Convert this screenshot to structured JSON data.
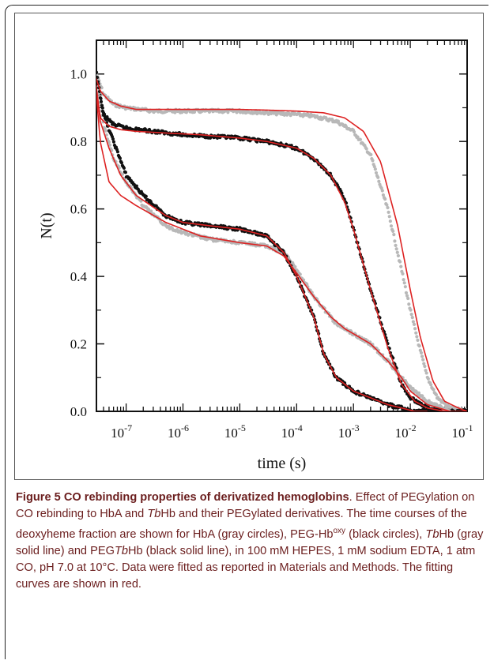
{
  "figure": {
    "caption_title": "Figure 5 CO rebinding properties of derivatized hemoglobins",
    "caption_parts": [
      {
        "text": ". Effect of PEGylation on CO rebinding to HbA and ",
        "italic": false,
        "sup": false
      },
      {
        "text": "Tb",
        "italic": true,
        "sup": false
      },
      {
        "text": "Hb and their PEGylated derivatives. The time courses of the deoxyheme fraction are shown for HbA (gray circles), PEG-Hb",
        "italic": false,
        "sup": false
      },
      {
        "text": "oxy",
        "italic": false,
        "sup": true
      },
      {
        "text": " (black circles), ",
        "italic": false,
        "sup": false
      },
      {
        "text": "Tb",
        "italic": true,
        "sup": false
      },
      {
        "text": "Hb (gray solid line) and PEG",
        "italic": false,
        "sup": false
      },
      {
        "text": "Tb",
        "italic": true,
        "sup": false
      },
      {
        "text": "Hb (black solid line), in 100 mM HEPES, 1 mM sodium EDTA, 1 atm CO, pH 7.0 at 10°C. Data were fitted as reported in Materials and Methods. The fitting curves are shown in red.",
        "italic": false,
        "sup": false
      }
    ]
  },
  "chart_data": {
    "type": "scatter",
    "xlabel": "time (s)",
    "ylabel": "N(t)",
    "x_scale": "log",
    "xlim": [
      3e-08,
      0.1
    ],
    "ylim": [
      0,
      1.1
    ],
    "x_ticks": [
      {
        "value": 1e-07,
        "mantissa": "10",
        "exp": "-7"
      },
      {
        "value": 1e-06,
        "mantissa": "10",
        "exp": "-6"
      },
      {
        "value": 1e-05,
        "mantissa": "10",
        "exp": "-5"
      },
      {
        "value": 0.0001,
        "mantissa": "10",
        "exp": "-4"
      },
      {
        "value": 0.001,
        "mantissa": "10",
        "exp": "-3"
      },
      {
        "value": 0.01,
        "mantissa": "10",
        "exp": "-2"
      },
      {
        "value": 0.1,
        "mantissa": "10",
        "exp": "-1"
      }
    ],
    "y_ticks": [
      "0.0",
      "0.2",
      "0.4",
      "0.6",
      "0.8",
      "1.0"
    ],
    "grid": false,
    "colors": {
      "gray_data": "#b8b8b8",
      "black_data": "#111111",
      "fit": "#dd2222"
    },
    "series": [
      {
        "style": "gray-dots",
        "x": [
          3e-08,
          4e-08,
          6e-08,
          1e-07,
          3e-07,
          1e-06,
          3e-06,
          1e-05,
          3e-05,
          0.0001,
          0.0002,
          0.0005,
          0.001,
          0.002,
          0.004,
          0.007,
          0.01,
          0.015,
          0.02,
          0.03,
          0.05,
          0.1
        ],
        "y": [
          1.0,
          0.94,
          0.91,
          0.9,
          0.89,
          0.89,
          0.89,
          0.89,
          0.885,
          0.88,
          0.875,
          0.86,
          0.83,
          0.76,
          0.6,
          0.42,
          0.3,
          0.18,
          0.1,
          0.04,
          0.01,
          0.0
        ]
      },
      {
        "style": "black-dots",
        "x": [
          3e-08,
          4e-08,
          6e-08,
          1e-07,
          3e-07,
          1e-06,
          3e-06,
          1e-05,
          3e-05,
          0.0001,
          0.0002,
          0.0004,
          0.0007,
          0.001,
          0.002,
          0.004,
          0.007,
          0.01,
          0.02,
          0.05,
          0.1
        ],
        "y": [
          1.0,
          0.88,
          0.85,
          0.84,
          0.83,
          0.82,
          0.815,
          0.81,
          0.8,
          0.78,
          0.75,
          0.7,
          0.63,
          0.54,
          0.36,
          0.2,
          0.08,
          0.04,
          0.01,
          0.0,
          0.0
        ]
      },
      {
        "style": "gray-dots",
        "x": [
          3e-08,
          4e-08,
          6e-08,
          1e-07,
          2e-07,
          5e-07,
          1e-06,
          3e-06,
          1e-05,
          3e-05,
          6e-05,
          0.0001,
          0.0002,
          0.0005,
          0.001,
          0.002,
          0.004,
          0.007,
          0.01,
          0.02,
          0.05
        ],
        "y": [
          1.0,
          0.85,
          0.75,
          0.68,
          0.61,
          0.55,
          0.53,
          0.51,
          0.5,
          0.49,
          0.47,
          0.42,
          0.34,
          0.26,
          0.23,
          0.2,
          0.15,
          0.1,
          0.07,
          0.03,
          0.0
        ]
      },
      {
        "style": "black-dots",
        "x": [
          3e-08,
          4e-08,
          6e-08,
          1e-07,
          2e-07,
          5e-07,
          1e-06,
          3e-06,
          1e-05,
          3e-05,
          6e-05,
          0.0001,
          0.0002,
          0.0003,
          0.0005,
          0.001,
          0.002,
          0.004,
          0.007,
          0.01,
          0.02
        ],
        "y": [
          1.0,
          0.88,
          0.8,
          0.7,
          0.64,
          0.58,
          0.56,
          0.55,
          0.54,
          0.52,
          0.47,
          0.4,
          0.28,
          0.17,
          0.1,
          0.06,
          0.04,
          0.02,
          0.01,
          0.0,
          0.0
        ]
      },
      {
        "style": "fit-line",
        "x": [
          2.8e-08,
          3.5e-08,
          5e-08,
          8e-08,
          1.5e-07,
          5e-07,
          2e-06,
          1e-05,
          3e-05,
          0.0001,
          0.0003,
          0.0007,
          0.0015,
          0.003,
          0.006,
          0.01,
          0.015,
          0.025,
          0.04,
          0.07,
          0.1
        ],
        "y": [
          1.0,
          0.95,
          0.92,
          0.905,
          0.895,
          0.895,
          0.895,
          0.895,
          0.893,
          0.89,
          0.885,
          0.87,
          0.83,
          0.74,
          0.55,
          0.36,
          0.22,
          0.09,
          0.03,
          0.01,
          0.0
        ]
      },
      {
        "style": "fit-line",
        "x": [
          2.8e-08,
          3.5e-08,
          5e-08,
          8e-08,
          1.5e-07,
          5e-07,
          2e-06,
          1e-05,
          3e-05,
          0.0001,
          0.0002,
          0.0004,
          0.0007,
          0.001,
          0.002,
          0.004,
          0.007,
          0.012,
          0.02,
          0.04,
          0.1
        ],
        "y": [
          1.0,
          0.87,
          0.845,
          0.835,
          0.83,
          0.825,
          0.82,
          0.81,
          0.8,
          0.78,
          0.75,
          0.7,
          0.62,
          0.54,
          0.36,
          0.19,
          0.08,
          0.03,
          0.01,
          0.0,
          0.0
        ]
      },
      {
        "style": "fit-line",
        "x": [
          2.8e-08,
          3.5e-08,
          5e-08,
          8e-08,
          1.5e-07,
          5e-07,
          2e-06,
          1e-05,
          3e-05,
          6e-05,
          0.0001,
          0.0002,
          0.0004,
          0.0007,
          0.001,
          0.002,
          0.004,
          0.007,
          0.01,
          0.02,
          0.05
        ],
        "y": [
          1.0,
          0.8,
          0.68,
          0.64,
          0.61,
          0.56,
          0.52,
          0.5,
          0.49,
          0.46,
          0.41,
          0.34,
          0.28,
          0.245,
          0.23,
          0.2,
          0.15,
          0.1,
          0.06,
          0.02,
          0.0
        ]
      },
      {
        "style": "fit-line",
        "x": [
          2.8e-08,
          3.5e-08,
          5e-08,
          8e-08,
          1.5e-07,
          5e-07,
          1e-06,
          3e-06,
          1e-05,
          3e-05,
          6e-05,
          0.0001,
          0.0002,
          0.0003,
          0.0005,
          0.001,
          0.002,
          0.004,
          0.007,
          0.012,
          0.02
        ],
        "y": [
          1.0,
          0.86,
          0.78,
          0.7,
          0.64,
          0.58,
          0.56,
          0.55,
          0.54,
          0.52,
          0.47,
          0.4,
          0.28,
          0.17,
          0.1,
          0.06,
          0.04,
          0.02,
          0.01,
          0.0,
          0.0
        ]
      }
    ]
  }
}
